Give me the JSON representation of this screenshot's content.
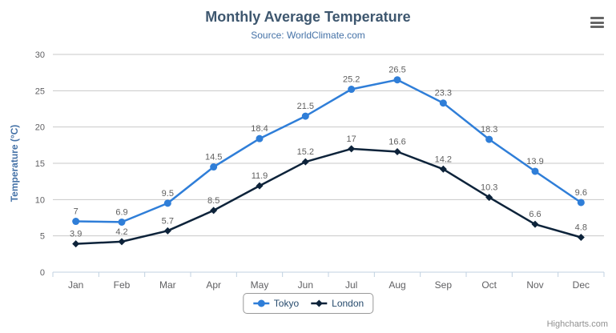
{
  "chart": {
    "credits": "Highcharts.com",
    "menu_tooltip": "Chart context menu"
  },
  "chart_data": {
    "type": "line",
    "title": "Monthly Average Temperature",
    "subtitle": "Source: WorldClimate.com",
    "categories": [
      "Jan",
      "Feb",
      "Mar",
      "Apr",
      "May",
      "Jun",
      "Jul",
      "Aug",
      "Sep",
      "Oct",
      "Nov",
      "Dec"
    ],
    "series": [
      {
        "name": "Tokyo",
        "marker": "circle",
        "color": "#2f7ed8",
        "values": [
          7,
          6.9,
          9.5,
          14.5,
          18.4,
          21.5,
          25.2,
          26.5,
          23.3,
          18.3,
          13.9,
          9.6
        ]
      },
      {
        "name": "London",
        "marker": "diamond",
        "color": "#0d233a",
        "values": [
          3.9,
          4.2,
          5.7,
          8.5,
          11.9,
          15.2,
          17,
          16.6,
          14.2,
          10.3,
          6.6,
          4.8
        ]
      }
    ],
    "xlabel": "",
    "ylabel": "Temperature (°C)",
    "ylim": [
      0,
      30
    ],
    "ytick": 5,
    "grid": true,
    "legend_position": "bottom",
    "data_labels": true,
    "colors": {
      "title": "#3E576F",
      "subtitle": "#4572A7",
      "axis_title": "#4572A7",
      "axis_label": "#606063",
      "data_label": "#606060",
      "grid": "#C8C8C8",
      "axis_line": "#C0D0E0",
      "legend_text": "#274b6d",
      "legend_border": "#999999",
      "credits": "#909090",
      "menu_icon": "#666666"
    }
  }
}
